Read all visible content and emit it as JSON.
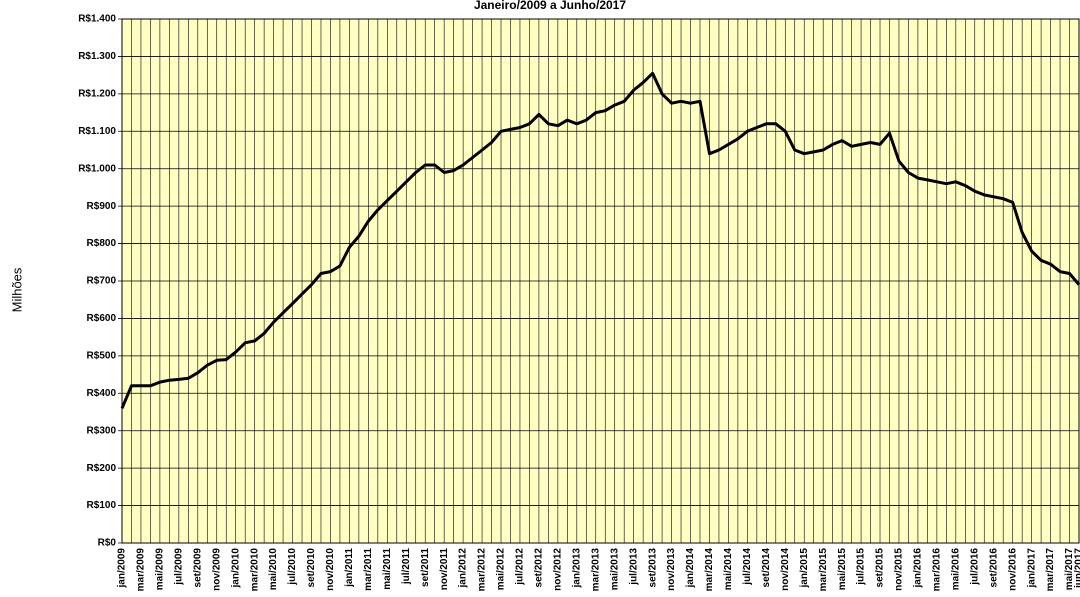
{
  "chart_data": {
    "type": "line",
    "title": "Janeiro/2009 a Junho/2017",
    "y_label": "Milhões",
    "categories": [
      "jan/2009",
      null,
      "mar/2009",
      null,
      "mai/2009",
      null,
      "jul/2009",
      null,
      "set/2009",
      null,
      "nov/2009",
      null,
      "jan/2010",
      null,
      "mar/2010",
      null,
      "mai/2010",
      null,
      "jul/2010",
      null,
      "set/2010",
      null,
      "nov/2010",
      null,
      "jan/2011",
      null,
      "mar/2011",
      null,
      "mai/2011",
      null,
      "jul/2011",
      null,
      "set/2011",
      null,
      "nov/2011",
      null,
      "jan/2012",
      null,
      "mar/2012",
      null,
      "mai/2012",
      null,
      "jul/2012",
      null,
      "set/2012",
      null,
      "nov/2012",
      null,
      "jan/2013",
      null,
      "mar/2013",
      null,
      "mai/2013",
      null,
      "jul/2013",
      null,
      "set/2013",
      null,
      "nov/2013",
      null,
      "jan/2014",
      null,
      "mar/2014",
      null,
      "mai/2014",
      null,
      "jul/2014",
      null,
      "set/2014",
      null,
      "nov/2014",
      null,
      "jan/2015",
      null,
      "mar/2015",
      null,
      "mai/2015",
      null,
      "jul/2015",
      null,
      "set/2015",
      null,
      "nov/2015",
      null,
      "jan/2016",
      null,
      "mar/2016",
      null,
      "mai/2016",
      null,
      "jul/2016",
      null,
      "set/2016",
      null,
      "nov/2016",
      null,
      "jan/2017",
      null,
      "mar/2017",
      null,
      "mai/2017",
      "jun/2017"
    ],
    "values": [
      360,
      420,
      420,
      420,
      430,
      435,
      437,
      440,
      455,
      475,
      488,
      490,
      510,
      535,
      540,
      560,
      590,
      615,
      640,
      665,
      690,
      720,
      725,
      740,
      790,
      820,
      860,
      890,
      915,
      940,
      965,
      990,
      1010,
      1010,
      990,
      995,
      1010,
      1030,
      1050,
      1070,
      1100,
      1105,
      1110,
      1120,
      1145,
      1120,
      1115,
      1130,
      1120,
      1130,
      1150,
      1155,
      1170,
      1180,
      1210,
      1230,
      1255,
      1200,
      1175,
      1180,
      1175,
      1180,
      1040,
      1050,
      1065,
      1080,
      1100,
      1110,
      1120,
      1120,
      1100,
      1050,
      1040,
      1045,
      1050,
      1065,
      1075,
      1060,
      1065,
      1070,
      1065,
      1095,
      1020,
      990,
      975,
      970,
      965,
      960,
      965,
      955,
      940,
      930,
      925,
      920,
      910,
      830,
      780,
      755,
      745,
      725,
      720,
      690
    ],
    "color": "#000000",
    "background": "#ffffc4",
    "ylim": [
      0,
      1400
    ],
    "yticks": [
      {
        "value": 0,
        "label": "R$0"
      },
      {
        "value": 100,
        "label": "R$100"
      },
      {
        "value": 200,
        "label": "R$200"
      },
      {
        "value": 300,
        "label": "R$300"
      },
      {
        "value": 400,
        "label": "R$400"
      },
      {
        "value": 500,
        "label": "R$500"
      },
      {
        "value": 600,
        "label": "R$600"
      },
      {
        "value": 700,
        "label": "R$700"
      },
      {
        "value": 800,
        "label": "R$800"
      },
      {
        "value": 900,
        "label": "R$900"
      },
      {
        "value": 1000,
        "label": "R$1.000"
      },
      {
        "value": 1100,
        "label": "R$1.100"
      },
      {
        "value": 1200,
        "label": "R$1.200"
      },
      {
        "value": 1300,
        "label": "R$1.300"
      },
      {
        "value": 1400,
        "label": "R$1.400"
      }
    ],
    "grid": true
  }
}
